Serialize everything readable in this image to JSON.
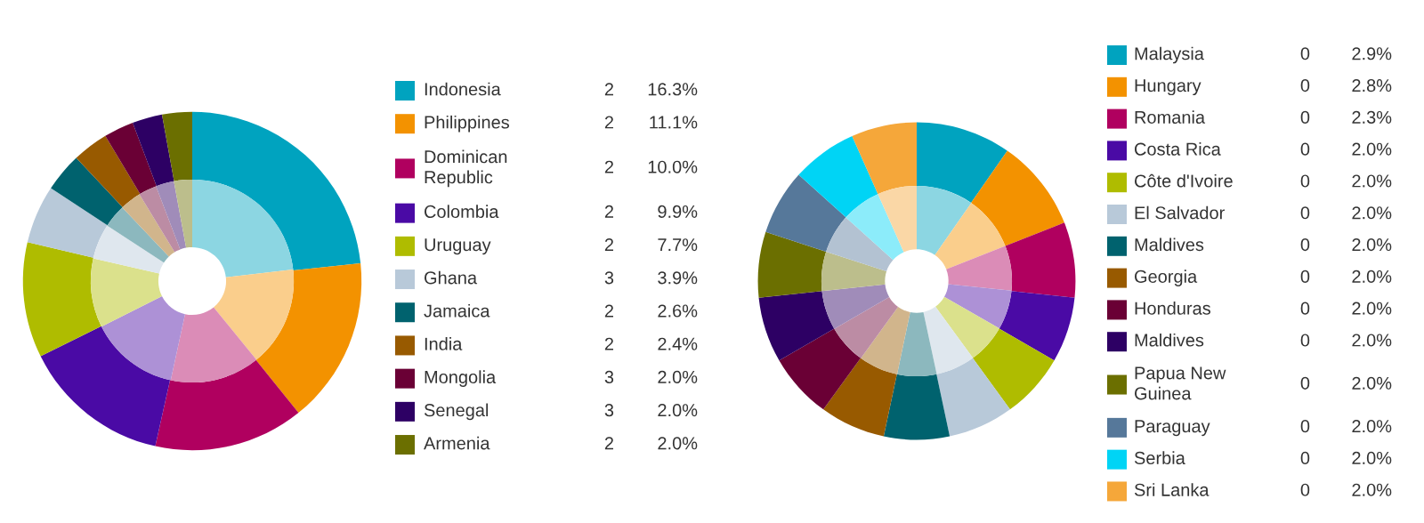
{
  "chart_data": [
    {
      "type": "donut",
      "legend": "right",
      "categories": [
        "Indonesia",
        "Philippines",
        "Dominican Republic",
        "Colombia",
        "Uruguay",
        "Ghana",
        "Jamaica",
        "India",
        "Mongolia",
        "Senegal",
        "Armenia"
      ],
      "annotations": [
        "2",
        "2",
        "2",
        "2",
        "2",
        "3",
        "2",
        "2",
        "3",
        "3",
        "2"
      ],
      "series": [
        {
          "values": [
            16.3,
            11.1,
            10.0,
            9.9,
            7.7,
            3.9,
            2.6,
            2.4,
            2.0,
            2.0,
            2.0
          ],
          "value_labels": [
            "16.3%",
            "11.1%",
            "10.0%",
            "9.9%",
            "7.7%",
            "3.9%",
            "2.6%",
            "2.4%",
            "2.0%",
            "2.0%",
            "2.0%"
          ],
          "colors": [
            "#00a3bf",
            "#f39200",
            "#b0005f",
            "#4a0aa5",
            "#afbc00",
            "#b8c9d9",
            "#00626e",
            "#985a00",
            "#6a0035",
            "#2d0064",
            "#6b6f00"
          ]
        },
        {
          "values": [
            23.2,
            15.9,
            14.3,
            14.2,
            11.0,
            5.6,
            3.7,
            3.4,
            2.9,
            2.9,
            2.9
          ],
          "colors": [
            "#8cd6e2",
            "#face8c",
            "#db8cb7",
            "#ad91d6",
            "#dbe18c",
            "#dfe7ee",
            "#8cb8be",
            "#d1b58c",
            "#bc8ca4",
            "#a08cb9",
            "#bcbe8c"
          ]
        }
      ]
    },
    {
      "type": "donut",
      "legend": "right",
      "categories": [
        "Malaysia",
        "Hungary",
        "Romania",
        "Costa Rica",
        "Côte d'Ivoire",
        "El Salvador",
        "Maldives",
        "Georgia",
        "Honduras",
        "Maldives",
        "Papua New Guinea",
        "Paraguay",
        "Serbia",
        "Sri Lanka"
      ],
      "annotations": [
        "0",
        "0",
        "0",
        "0",
        "0",
        "0",
        "0",
        "0",
        "0",
        "0",
        "0",
        "0",
        "0",
        "0"
      ],
      "series": [
        {
          "values": [
            2.9,
            2.8,
            2.3,
            2.0,
            2.0,
            2.0,
            2.0,
            2.0,
            2.0,
            2.0,
            2.0,
            2.0,
            2.0,
            2.0
          ],
          "value_labels": [
            "2.9%",
            "2.8%",
            "2.3%",
            "2.0%",
            "2.0%",
            "2.0%",
            "2.0%",
            "2.0%",
            "2.0%",
            "2.0%",
            "2.0%",
            "2.0%",
            "2.0%",
            "2.0%"
          ],
          "colors": [
            "#00a3bf",
            "#f39200",
            "#b0005f",
            "#4a0aa5",
            "#afbc00",
            "#b8c9d9",
            "#00626e",
            "#985a00",
            "#6a0035",
            "#2d0064",
            "#6b6f00",
            "#56789a",
            "#00d4f5",
            "#f5a73a"
          ]
        },
        {
          "values": [
            9.7,
            9.3,
            7.6,
            6.67,
            6.67,
            6.67,
            6.67,
            6.67,
            6.67,
            6.67,
            6.67,
            6.67,
            6.67,
            6.67
          ],
          "colors": [
            "#8cd6e2",
            "#face8c",
            "#db8cb7",
            "#ad91d6",
            "#dbe18c",
            "#dfe7ee",
            "#8cb8be",
            "#d1b58c",
            "#bc8ca4",
            "#a08cb9",
            "#bcbe8c",
            "#b3c2d2",
            "#8cecfa",
            "#fad7a6"
          ]
        }
      ]
    }
  ]
}
